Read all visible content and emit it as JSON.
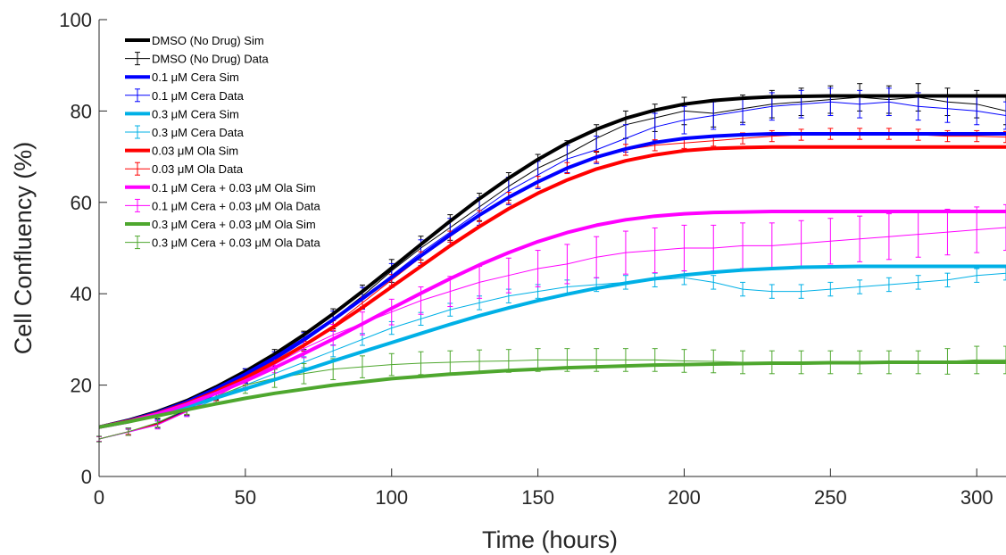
{
  "chart_data": {
    "type": "line",
    "xlabel": "Time (hours)",
    "ylabel": "Cell Confluency (%)",
    "xlim": [
      0,
      310
    ],
    "ylim": [
      0,
      100
    ],
    "xticks": [
      0,
      50,
      100,
      150,
      200,
      250,
      300
    ],
    "yticks": [
      0,
      20,
      40,
      60,
      80,
      100
    ],
    "grid": false,
    "legend_position": "top-left",
    "series": [
      {
        "name": "DMSO (No Drug) Sim",
        "kind": "sim",
        "color": "#000000",
        "x": [
          0,
          10,
          20,
          30,
          40,
          50,
          60,
          70,
          80,
          90,
          100,
          110,
          120,
          130,
          140,
          150,
          160,
          170,
          180,
          190,
          200,
          210,
          220,
          230,
          240,
          250,
          260,
          270,
          280,
          290,
          300,
          310
        ],
        "y": [
          10.8,
          12.3,
          14.2,
          16.6,
          19.6,
          23.0,
          26.8,
          31.0,
          35.6,
          40.5,
          45.6,
          50.8,
          55.9,
          60.8,
          65.3,
          69.4,
          73.0,
          76.0,
          78.4,
          80.2,
          81.5,
          82.3,
          82.8,
          83.1,
          83.2,
          83.3,
          83.3,
          83.3,
          83.3,
          83.3,
          83.3,
          83.3
        ]
      },
      {
        "name": "DMSO (No Drug) Data",
        "kind": "data",
        "color": "#000000",
        "x": [
          0,
          10,
          20,
          30,
          40,
          50,
          60,
          70,
          80,
          90,
          100,
          110,
          120,
          130,
          140,
          150,
          160,
          170,
          180,
          190,
          200,
          210,
          220,
          230,
          240,
          250,
          260,
          270,
          280,
          290,
          300,
          310
        ],
        "y": [
          8.2,
          9.8,
          11.6,
          14.6,
          18.2,
          22.0,
          26.0,
          29.8,
          34.5,
          39.5,
          45.0,
          50.0,
          54.5,
          59.0,
          63.5,
          67.5,
          70.5,
          74.0,
          77.0,
          78.5,
          80.0,
          79.5,
          80.5,
          81.5,
          82.0,
          82.5,
          83.0,
          82.5,
          83.0,
          82.0,
          81.5,
          80.0
        ],
        "err": [
          0.6,
          0.8,
          1.0,
          1.2,
          1.4,
          1.5,
          1.8,
          2.0,
          2.2,
          2.4,
          2.5,
          2.6,
          2.8,
          3.0,
          3.0,
          3.0,
          3.0,
          3.0,
          3.0,
          3.0,
          3.0,
          3.0,
          3.0,
          3.0,
          3.0,
          3.0,
          3.0,
          3.0,
          3.0,
          3.0,
          3.0,
          3.0
        ]
      },
      {
        "name": "0.1 μM Cera Sim",
        "kind": "sim",
        "color": "#0000ff",
        "x": [
          0,
          10,
          20,
          30,
          40,
          50,
          60,
          70,
          80,
          90,
          100,
          110,
          120,
          130,
          140,
          150,
          160,
          170,
          180,
          190,
          200,
          210,
          220,
          230,
          240,
          250,
          260,
          270,
          280,
          290,
          300,
          310
        ],
        "y": [
          10.8,
          12.2,
          14.0,
          16.3,
          19.2,
          22.4,
          26.0,
          30.0,
          34.3,
          38.9,
          43.6,
          48.3,
          52.9,
          57.2,
          61.1,
          64.5,
          67.5,
          69.9,
          71.7,
          73.1,
          74.0,
          74.5,
          74.8,
          75.0,
          75.0,
          75.0,
          75.0,
          75.0,
          75.0,
          75.0,
          75.0,
          75.0
        ]
      },
      {
        "name": "0.1 μM Cera Data",
        "kind": "data",
        "color": "#0000ff",
        "x": [
          0,
          10,
          20,
          30,
          40,
          50,
          60,
          70,
          80,
          90,
          100,
          110,
          120,
          130,
          140,
          150,
          160,
          170,
          180,
          190,
          200,
          210,
          220,
          230,
          240,
          250,
          260,
          270,
          280,
          290,
          300,
          310
        ],
        "y": [
          8.2,
          9.8,
          11.5,
          14.5,
          18.0,
          22.0,
          25.5,
          29.5,
          34.0,
          39.0,
          44.0,
          49.0,
          53.5,
          58.0,
          62.5,
          66.0,
          69.5,
          71.5,
          74.0,
          76.5,
          78.0,
          79.0,
          80.0,
          81.0,
          81.5,
          82.0,
          81.5,
          82.0,
          81.0,
          80.5,
          80.0,
          79.0
        ],
        "err": [
          0.6,
          0.8,
          1.0,
          1.2,
          1.4,
          1.6,
          1.8,
          2.0,
          2.2,
          2.4,
          2.6,
          2.8,
          3.0,
          3.0,
          3.0,
          3.0,
          3.0,
          3.0,
          3.0,
          3.0,
          3.0,
          3.0,
          3.0,
          3.0,
          3.0,
          3.0,
          3.0,
          3.0,
          3.0,
          3.0,
          3.0,
          3.0
        ]
      },
      {
        "name": "0.3 μM Cera Sim",
        "kind": "sim",
        "color": "#00b0e6",
        "x": [
          0,
          10,
          20,
          30,
          40,
          50,
          60,
          70,
          80,
          90,
          100,
          110,
          120,
          130,
          140,
          150,
          160,
          170,
          180,
          190,
          200,
          210,
          220,
          230,
          240,
          250,
          260,
          270,
          280,
          290,
          300,
          310
        ],
        "y": [
          10.8,
          12.0,
          13.5,
          15.3,
          17.2,
          19.2,
          21.2,
          23.2,
          25.3,
          27.3,
          29.3,
          31.3,
          33.3,
          35.2,
          36.9,
          38.5,
          39.9,
          41.2,
          42.3,
          43.3,
          44.1,
          44.7,
          45.2,
          45.5,
          45.8,
          45.9,
          46.0,
          46.0,
          46.0,
          46.0,
          46.0,
          46.0
        ]
      },
      {
        "name": "0.3 μM Cera Data",
        "kind": "data",
        "color": "#00b0e6",
        "x": [
          0,
          10,
          20,
          30,
          40,
          50,
          60,
          70,
          80,
          90,
          100,
          110,
          120,
          130,
          140,
          150,
          160,
          170,
          180,
          190,
          200,
          210,
          220,
          230,
          240,
          250,
          260,
          270,
          280,
          290,
          300,
          310
        ],
        "y": [
          8.2,
          9.7,
          11.3,
          14.2,
          17.0,
          20.0,
          22.5,
          25.0,
          27.5,
          30.0,
          32.5,
          34.5,
          36.5,
          38.0,
          39.5,
          40.5,
          41.5,
          42.0,
          42.5,
          43.0,
          43.5,
          42.5,
          41.0,
          40.5,
          40.5,
          41.0,
          41.5,
          42.0,
          42.5,
          43.0,
          44.0,
          44.5
        ],
        "err": [
          0.5,
          0.6,
          0.8,
          1.0,
          1.0,
          1.1,
          1.2,
          1.2,
          1.3,
          1.3,
          1.4,
          1.4,
          1.4,
          1.5,
          1.5,
          1.5,
          1.5,
          1.5,
          1.5,
          1.5,
          1.5,
          1.5,
          1.5,
          1.5,
          1.5,
          1.5,
          1.5,
          1.5,
          1.5,
          1.5,
          1.5,
          1.5
        ]
      },
      {
        "name": "0.03 μM Ola Sim",
        "kind": "sim",
        "color": "#ff0000",
        "x": [
          0,
          10,
          20,
          30,
          40,
          50,
          60,
          70,
          80,
          90,
          100,
          110,
          120,
          130,
          140,
          150,
          160,
          170,
          180,
          190,
          200,
          210,
          220,
          230,
          240,
          250,
          260,
          270,
          280,
          290,
          300,
          310
        ],
        "y": [
          10.8,
          12.1,
          13.8,
          16.0,
          18.6,
          21.6,
          25.0,
          28.7,
          32.7,
          37.0,
          41.5,
          46.0,
          50.5,
          54.7,
          58.6,
          62.0,
          64.9,
          67.3,
          69.1,
          70.4,
          71.3,
          71.8,
          72.0,
          72.1,
          72.1,
          72.1,
          72.1,
          72.1,
          72.1,
          72.1,
          72.1,
          72.1
        ]
      },
      {
        "name": "0.03 μM Ola Data",
        "kind": "data",
        "color": "#ff0000",
        "x": [
          0,
          10,
          20,
          30,
          40,
          50,
          60,
          70,
          80,
          90,
          100,
          110,
          120,
          130,
          140,
          150,
          160,
          170,
          180,
          190,
          200,
          210,
          220,
          230,
          240,
          250,
          260,
          270,
          280,
          290,
          300,
          310
        ],
        "y": [
          8.2,
          9.8,
          11.5,
          14.3,
          17.5,
          21.0,
          24.5,
          28.5,
          33.0,
          38.0,
          43.0,
          48.0,
          52.5,
          57.0,
          61.0,
          64.5,
          67.5,
          70.0,
          71.5,
          72.5,
          73.0,
          73.5,
          74.0,
          74.5,
          74.8,
          75.0,
          75.0,
          75.0,
          74.8,
          74.5,
          74.5,
          74.3
        ],
        "err": [
          0.5,
          0.6,
          0.7,
          0.8,
          0.9,
          1.0,
          1.0,
          1.1,
          1.1,
          1.2,
          1.2,
          1.2,
          1.2,
          1.2,
          1.2,
          1.2,
          1.2,
          1.2,
          1.2,
          1.2,
          1.2,
          1.2,
          1.2,
          1.2,
          1.2,
          1.2,
          1.2,
          1.2,
          1.2,
          1.2,
          1.2,
          1.2
        ]
      },
      {
        "name": "0.1 μM Cera + 0.03 μM Ola Sim",
        "kind": "sim",
        "color": "#ff00ff",
        "x": [
          0,
          10,
          20,
          30,
          40,
          50,
          60,
          70,
          80,
          90,
          100,
          110,
          120,
          130,
          140,
          150,
          160,
          170,
          180,
          190,
          200,
          210,
          220,
          230,
          240,
          250,
          260,
          270,
          280,
          290,
          300,
          310
        ],
        "y": [
          10.8,
          12.0,
          13.7,
          15.8,
          18.2,
          20.9,
          23.8,
          26.9,
          30.1,
          33.4,
          36.8,
          40.1,
          43.3,
          46.3,
          49.0,
          51.4,
          53.4,
          55.0,
          56.2,
          57.0,
          57.5,
          57.8,
          57.9,
          58.0,
          58.0,
          58.0,
          58.0,
          58.0,
          58.0,
          58.0,
          58.0,
          58.0
        ]
      },
      {
        "name": "0.1 μM Cera + 0.03 μM Ola Data",
        "kind": "data",
        "color": "#ff00ff",
        "x": [
          0,
          10,
          20,
          30,
          40,
          50,
          60,
          70,
          80,
          90,
          100,
          110,
          120,
          130,
          140,
          150,
          160,
          170,
          180,
          190,
          200,
          210,
          220,
          230,
          240,
          250,
          260,
          270,
          280,
          290,
          300,
          310
        ],
        "y": [
          8.2,
          9.7,
          11.3,
          14.2,
          17.5,
          21.0,
          24.5,
          28.0,
          31.0,
          33.5,
          36.0,
          38.5,
          40.5,
          42.5,
          44.0,
          45.5,
          46.5,
          48.0,
          49.0,
          49.5,
          50.0,
          50.0,
          50.5,
          50.5,
          51.0,
          51.5,
          52.0,
          52.5,
          53.0,
          53.5,
          54.0,
          54.5
        ],
        "err": [
          0.5,
          0.7,
          0.9,
          1.1,
          1.3,
          1.5,
          1.8,
          2.0,
          2.3,
          2.5,
          2.8,
          3.0,
          3.3,
          3.5,
          3.8,
          4.0,
          4.3,
          4.5,
          4.7,
          4.9,
          5.0,
          5.0,
          5.0,
          5.0,
          5.0,
          5.0,
          5.0,
          5.0,
          5.0,
          5.0,
          5.0,
          5.0
        ]
      },
      {
        "name": "0.3 μM Cera + 0.03 μM Ola Sim",
        "kind": "sim",
        "color": "#4ea72e",
        "x": [
          0,
          10,
          20,
          30,
          40,
          50,
          60,
          70,
          80,
          90,
          100,
          110,
          120,
          130,
          140,
          150,
          160,
          170,
          180,
          190,
          200,
          210,
          220,
          230,
          240,
          250,
          260,
          270,
          280,
          290,
          300,
          310
        ],
        "y": [
          10.8,
          12.0,
          13.3,
          14.6,
          15.9,
          17.1,
          18.2,
          19.1,
          20.0,
          20.7,
          21.4,
          21.9,
          22.4,
          22.8,
          23.2,
          23.5,
          23.8,
          24.0,
          24.2,
          24.4,
          24.5,
          24.6,
          24.7,
          24.8,
          24.8,
          24.9,
          24.9,
          25.0,
          25.0,
          25.0,
          25.0,
          25.0
        ]
      },
      {
        "name": "0.3 μM Cera + 0.03 μM Ola Data",
        "kind": "data",
        "color": "#4ea72e",
        "x": [
          0,
          10,
          20,
          30,
          40,
          50,
          60,
          70,
          80,
          90,
          100,
          110,
          120,
          130,
          140,
          150,
          160,
          170,
          180,
          190,
          200,
          210,
          220,
          230,
          240,
          250,
          260,
          270,
          280,
          290,
          300,
          310
        ],
        "y": [
          8.2,
          9.8,
          11.8,
          14.8,
          17.5,
          20.0,
          21.5,
          22.5,
          23.5,
          24.0,
          24.5,
          24.8,
          25.0,
          25.2,
          25.3,
          25.5,
          25.5,
          25.5,
          25.5,
          25.5,
          25.3,
          25.2,
          25.0,
          25.0,
          25.0,
          25.0,
          25.0,
          25.0,
          25.0,
          25.2,
          25.5,
          25.5
        ],
        "err": [
          0.6,
          0.8,
          1.0,
          1.2,
          1.5,
          1.8,
          2.0,
          2.2,
          2.3,
          2.4,
          2.4,
          2.5,
          2.5,
          2.5,
          2.5,
          2.5,
          2.5,
          2.5,
          2.5,
          2.5,
          2.5,
          2.5,
          2.5,
          2.5,
          2.5,
          2.5,
          2.5,
          2.5,
          2.5,
          2.8,
          3.0,
          3.0
        ]
      }
    ]
  }
}
